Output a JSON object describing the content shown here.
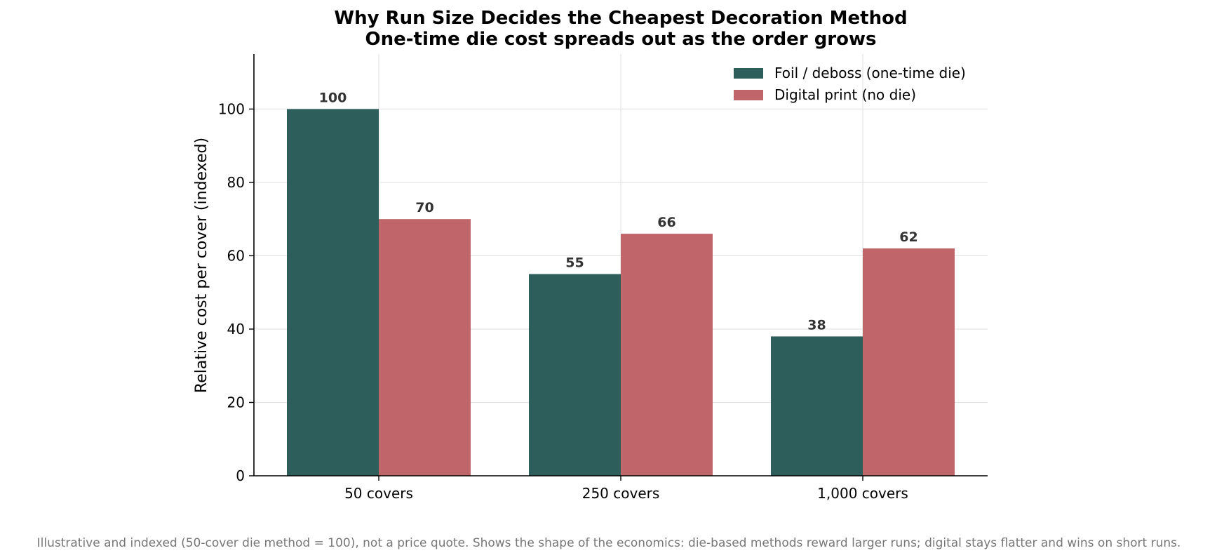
{
  "chart_data": {
    "type": "bar",
    "title": "Why Run Size Decides the Cheapest Decoration Method",
    "subtitle": "One-time die cost spreads out as the order grows",
    "xlabel": "",
    "ylabel": "Relative cost per cover (indexed)",
    "categories": [
      "50 covers",
      "250 covers",
      "1,000 covers"
    ],
    "series": [
      {
        "name": "Foil / deboss (one-time die)",
        "values": [
          100,
          55,
          38
        ],
        "color": "#2e5e5b"
      },
      {
        "name": "Digital print (no die)",
        "values": [
          70,
          66,
          62
        ],
        "color": "#c0666a"
      }
    ],
    "ylim": [
      0,
      115
    ],
    "yticks": [
      0,
      20,
      40,
      60,
      80,
      100
    ],
    "grid": true,
    "legend_position": "top-right",
    "data_labels": true,
    "footnote": "Illustrative and indexed (50-cover die method = 100), not a price quote. Shows the shape of the economics: die-based methods reward larger runs; digital stays flatter and wins on short runs."
  }
}
